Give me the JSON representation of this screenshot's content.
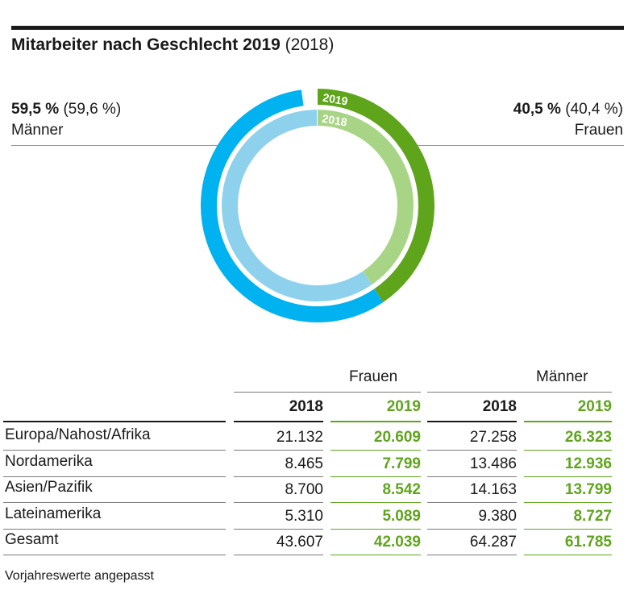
{
  "header": {
    "title_bold": "Mitarbeiter nach Geschlecht 2019",
    "title_prev": "(2018)"
  },
  "chart_data": {
    "type": "donut",
    "series": [
      {
        "name": "2019",
        "values": [
          59.5,
          40.5
        ]
      },
      {
        "name": "2018",
        "values": [
          59.6,
          40.4
        ]
      }
    ],
    "categories": [
      "Männer",
      "Frauen"
    ],
    "ring_labels": [
      "2019",
      "2018"
    ],
    "colors": {
      "maenner_2019": "#00b2ef",
      "frauen_2019": "#5fa51c",
      "maenner_2018": "#8ed1ec",
      "frauen_2018": "#a8d585"
    },
    "left_label": {
      "value": "59,5 %",
      "prev": "(59,6 %)",
      "name": "Männer"
    },
    "right_label": {
      "value": "40,5 %",
      "prev": "(40,4 %)",
      "name": "Frauen"
    }
  },
  "table": {
    "groups": [
      "Frauen",
      "Männer"
    ],
    "years": [
      "2018",
      "2019",
      "2018",
      "2019"
    ],
    "rows": [
      {
        "label": "Europa/Nahost/Afrika",
        "values": [
          "21.132",
          "20.609",
          "27.258",
          "26.323"
        ]
      },
      {
        "label": "Nordamerika",
        "values": [
          "8.465",
          "7.799",
          "13.486",
          "12.936"
        ]
      },
      {
        "label": "Asien/Pazifik",
        "values": [
          "8.700",
          "8.542",
          "14.163",
          "13.799"
        ]
      },
      {
        "label": "Lateinamerika",
        "values": [
          "5.310",
          "5.089",
          "9.380",
          "8.727"
        ]
      },
      {
        "label": "Gesamt",
        "values": [
          "43.607",
          "42.039",
          "64.287",
          "61.785"
        ]
      }
    ],
    "footnote": "Vorjahreswerte angepasst"
  }
}
